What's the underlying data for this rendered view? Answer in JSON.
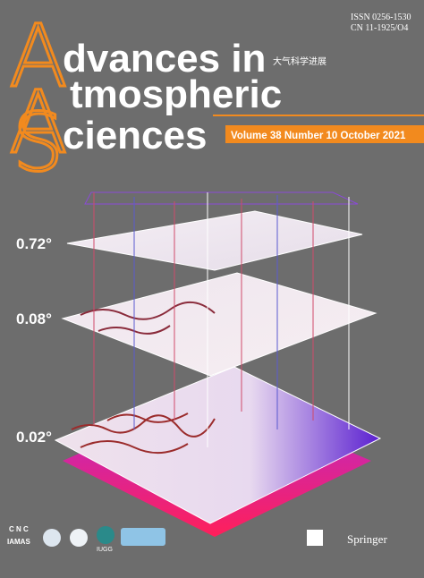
{
  "header": {
    "issn": "ISSN 0256-1530",
    "cn": "CN 11-1925/O4"
  },
  "title": {
    "line1_initial": "A",
    "line1_rest": "dvances in",
    "chinese": "大气科学进展",
    "line2_initial": "A",
    "line2_rest": "tmospheric",
    "line3_initial": "S",
    "line3_rest": "ciences"
  },
  "issue": "Volume 38 Number 10 October 2021",
  "layers": [
    "0.72°",
    "0.08°",
    "0.02°"
  ],
  "logos": [
    "C N C",
    "IAMAS",
    "IUGG",
    "Springer"
  ]
}
